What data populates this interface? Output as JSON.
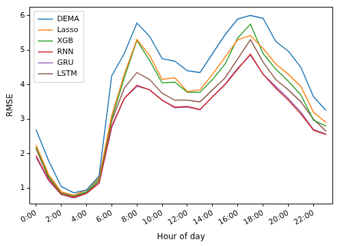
{
  "chart_data": {
    "type": "line",
    "x_label": "Hour of day",
    "y_label": "RMSE",
    "categories": [
      "0:00",
      null,
      "2:00",
      null,
      "4:00",
      null,
      "6:00",
      null,
      "8:00",
      null,
      "10:00",
      null,
      "12:00",
      null,
      "14:00",
      null,
      "16:00",
      null,
      "18:00",
      null,
      "20:00",
      null,
      "22:00",
      null
    ],
    "ylim": [
      0.55,
      6.25
    ],
    "yticks": [
      1,
      2,
      3,
      4,
      5,
      6
    ],
    "grid": false,
    "legend": "upper left",
    "series": [
      {
        "name": "DEMA",
        "color": "#1f77b4",
        "values": [
          2.7,
          1.8,
          1.05,
          0.87,
          0.95,
          1.35,
          4.25,
          4.9,
          5.78,
          5.4,
          4.75,
          4.68,
          4.4,
          4.35,
          4.9,
          5.45,
          5.9,
          6.0,
          5.92,
          5.25,
          4.97,
          4.5,
          3.65,
          3.25
        ]
      },
      {
        "name": "Lasso",
        "color": "#ff7f0e",
        "values": [
          2.25,
          1.4,
          0.9,
          0.8,
          0.95,
          1.3,
          3.1,
          4.3,
          5.3,
          4.85,
          4.15,
          4.2,
          3.8,
          3.85,
          4.3,
          4.8,
          5.3,
          5.42,
          5.05,
          4.6,
          4.3,
          3.95,
          3.2,
          2.9
        ]
      },
      {
        "name": "XGB",
        "color": "#2ca02c",
        "values": [
          2.2,
          1.35,
          0.88,
          0.78,
          0.9,
          1.25,
          3.0,
          4.2,
          5.28,
          4.7,
          4.05,
          4.07,
          3.78,
          3.78,
          4.15,
          4.6,
          5.35,
          5.75,
          4.9,
          4.45,
          4.1,
          3.7,
          2.97,
          2.8
        ]
      },
      {
        "name": "RNN",
        "color": "#d62728",
        "values": [
          1.95,
          1.25,
          0.83,
          0.73,
          0.85,
          1.15,
          2.8,
          3.6,
          3.98,
          3.85,
          3.55,
          3.35,
          3.37,
          3.28,
          3.65,
          4.0,
          4.45,
          4.88,
          4.3,
          3.9,
          3.55,
          3.15,
          2.68,
          2.55
        ]
      },
      {
        "name": "GRU",
        "color": "#9467bd",
        "values": [
          1.9,
          1.22,
          0.82,
          0.72,
          0.85,
          1.15,
          2.75,
          3.6,
          3.95,
          3.85,
          3.55,
          3.33,
          3.35,
          3.27,
          3.65,
          4.02,
          4.48,
          4.85,
          4.3,
          3.95,
          3.6,
          3.2,
          2.7,
          2.57
        ]
      },
      {
        "name": "LSTM",
        "color": "#8c564b",
        "values": [
          2.15,
          1.3,
          0.85,
          0.75,
          0.88,
          1.2,
          2.95,
          3.9,
          4.35,
          4.15,
          3.75,
          3.55,
          3.55,
          3.5,
          3.85,
          4.2,
          4.75,
          5.3,
          4.65,
          4.15,
          3.85,
          3.5,
          3.0,
          2.65
        ]
      }
    ]
  }
}
